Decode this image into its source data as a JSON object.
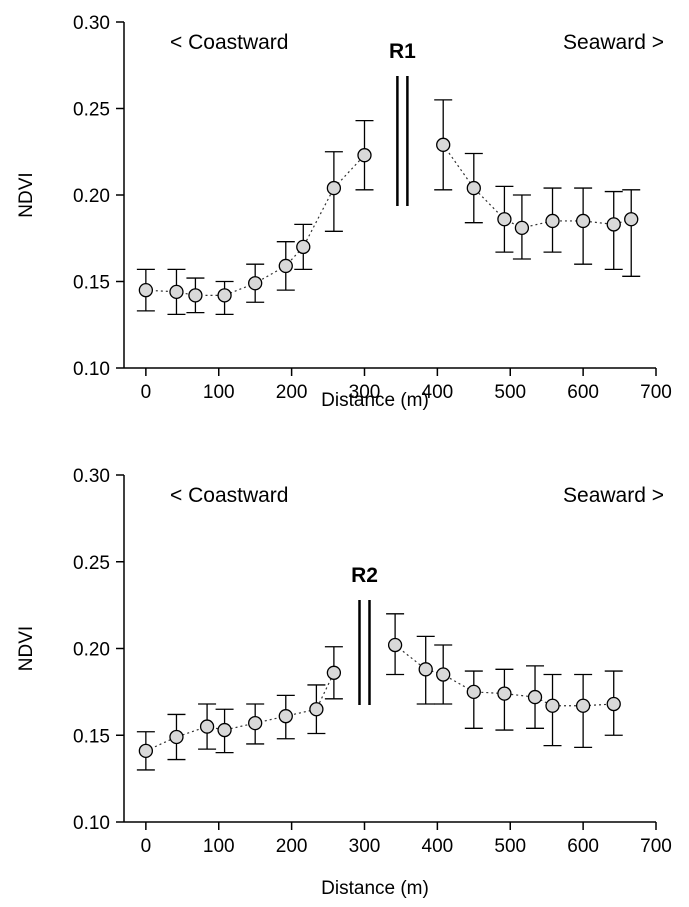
{
  "chart_data": [
    {
      "type": "scatter",
      "title": "",
      "xlabel": "Distance (m)",
      "ylabel": "NDVI",
      "xlim": [
        -30,
        700
      ],
      "ylim": [
        0.1,
        0.3
      ],
      "xticks": [
        0,
        100,
        200,
        300,
        400,
        500,
        600,
        700
      ],
      "xtick_labels": [
        "0",
        "100",
        "200",
        "300",
        "400",
        "500",
        "600",
        "700"
      ],
      "yticks": [
        0.1,
        0.15,
        0.2,
        0.25,
        0.3
      ],
      "ytick_labels": [
        "0.10",
        "0.15",
        "0.20",
        "0.25",
        "0.30"
      ],
      "grid": false,
      "annotations": {
        "left": "< Coastward",
        "right": "Seaward >"
      },
      "marker": {
        "label": "R1",
        "x": 352
      },
      "series": [
        {
          "points": [
            {
              "x": 0,
              "y": 0.145,
              "err_low": 0.133,
              "err_high": 0.157
            },
            {
              "x": 42,
              "y": 0.144,
              "err_low": 0.131,
              "err_high": 0.157
            },
            {
              "x": 68,
              "y": 0.142,
              "err_low": 0.132,
              "err_high": 0.152
            },
            {
              "x": 108,
              "y": 0.142,
              "err_low": 0.131,
              "err_high": 0.15
            },
            {
              "x": 150,
              "y": 0.149,
              "err_low": 0.138,
              "err_high": 0.16
            },
            {
              "x": 192,
              "y": 0.159,
              "err_low": 0.145,
              "err_high": 0.173
            },
            {
              "x": 216,
              "y": 0.17,
              "err_low": 0.157,
              "err_high": 0.183
            },
            {
              "x": 258,
              "y": 0.204,
              "err_low": 0.179,
              "err_high": 0.225
            },
            {
              "x": 300,
              "y": 0.223,
              "err_low": 0.203,
              "err_high": 0.243
            }
          ]
        },
        {
          "points": [
            {
              "x": 408,
              "y": 0.229,
              "err_low": 0.203,
              "err_high": 0.255
            },
            {
              "x": 450,
              "y": 0.204,
              "err_low": 0.184,
              "err_high": 0.224
            },
            {
              "x": 492,
              "y": 0.186,
              "err_low": 0.167,
              "err_high": 0.205
            },
            {
              "x": 516,
              "y": 0.181,
              "err_low": 0.163,
              "err_high": 0.2
            },
            {
              "x": 558,
              "y": 0.185,
              "err_low": 0.167,
              "err_high": 0.204
            },
            {
              "x": 600,
              "y": 0.185,
              "err_low": 0.16,
              "err_high": 0.204
            },
            {
              "x": 642,
              "y": 0.183,
              "err_low": 0.157,
              "err_high": 0.202
            },
            {
              "x": 666,
              "y": 0.186,
              "err_low": 0.153,
              "err_high": 0.203
            }
          ]
        }
      ]
    },
    {
      "type": "scatter",
      "title": "",
      "xlabel": "Distance (m)",
      "ylabel": "NDVI",
      "xlim": [
        -30,
        700
      ],
      "ylim": [
        0.1,
        0.3
      ],
      "xticks": [
        0,
        100,
        200,
        300,
        400,
        500,
        600,
        700
      ],
      "xtick_labels": [
        "0",
        "100",
        "200",
        "300",
        "400",
        "500",
        "600",
        "700"
      ],
      "yticks": [
        0.1,
        0.15,
        0.2,
        0.25,
        0.3
      ],
      "ytick_labels": [
        "0.10",
        "0.15",
        "0.20",
        "0.25",
        "0.30"
      ],
      "grid": false,
      "annotations": {
        "left": "< Coastward",
        "right": "Seaward >"
      },
      "marker": {
        "label": "R2",
        "x": 300
      },
      "series": [
        {
          "points": [
            {
              "x": 0,
              "y": 0.141,
              "err_low": 0.13,
              "err_high": 0.152
            },
            {
              "x": 42,
              "y": 0.149,
              "err_low": 0.136,
              "err_high": 0.162
            },
            {
              "x": 84,
              "y": 0.155,
              "err_low": 0.142,
              "err_high": 0.168
            },
            {
              "x": 108,
              "y": 0.153,
              "err_low": 0.14,
              "err_high": 0.165
            },
            {
              "x": 150,
              "y": 0.157,
              "err_low": 0.145,
              "err_high": 0.168
            },
            {
              "x": 192,
              "y": 0.161,
              "err_low": 0.148,
              "err_high": 0.173
            },
            {
              "x": 234,
              "y": 0.165,
              "err_low": 0.151,
              "err_high": 0.179
            },
            {
              "x": 258,
              "y": 0.186,
              "err_low": 0.171,
              "err_high": 0.201
            }
          ]
        },
        {
          "points": [
            {
              "x": 342,
              "y": 0.202,
              "err_low": 0.185,
              "err_high": 0.22
            },
            {
              "x": 384,
              "y": 0.188,
              "err_low": 0.168,
              "err_high": 0.207
            },
            {
              "x": 408,
              "y": 0.185,
              "err_low": 0.168,
              "err_high": 0.202
            },
            {
              "x": 450,
              "y": 0.175,
              "err_low": 0.154,
              "err_high": 0.187
            },
            {
              "x": 492,
              "y": 0.174,
              "err_low": 0.153,
              "err_high": 0.188
            },
            {
              "x": 534,
              "y": 0.172,
              "err_low": 0.154,
              "err_high": 0.19
            },
            {
              "x": 558,
              "y": 0.167,
              "err_low": 0.144,
              "err_high": 0.185
            },
            {
              "x": 600,
              "y": 0.167,
              "err_low": 0.143,
              "err_high": 0.185
            },
            {
              "x": 642,
              "y": 0.168,
              "err_low": 0.15,
              "err_high": 0.187
            }
          ]
        }
      ]
    }
  ]
}
